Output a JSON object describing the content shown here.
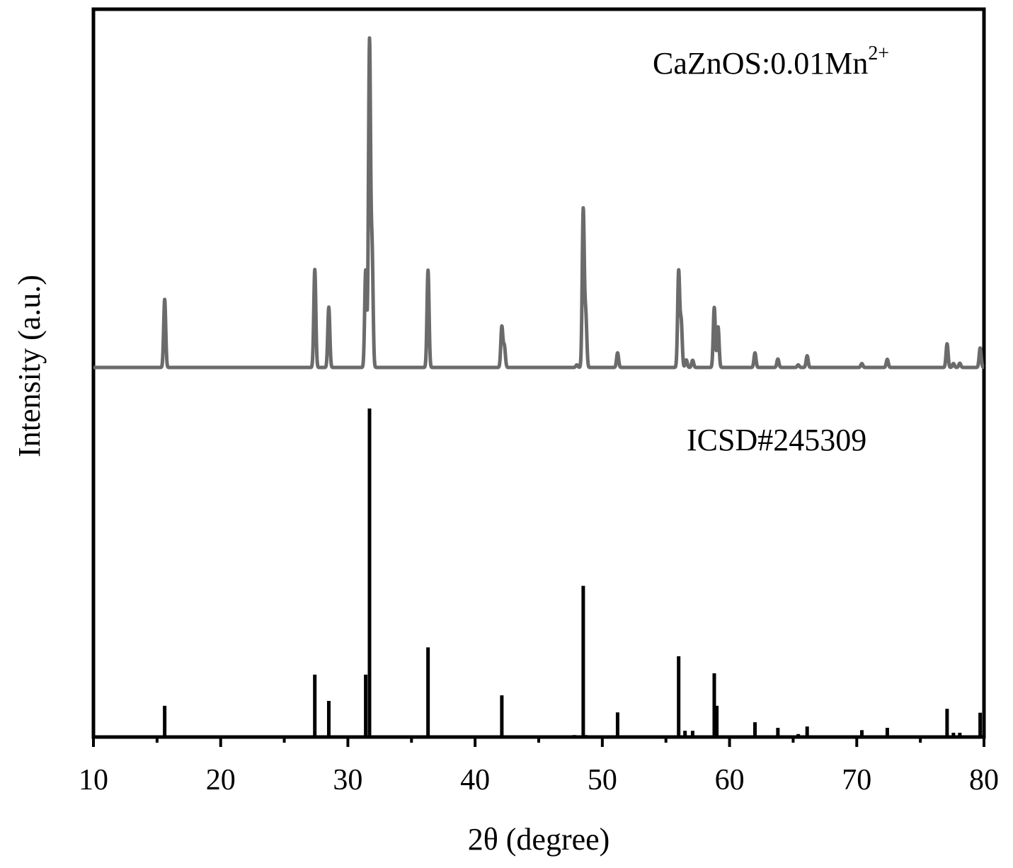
{
  "chart_data": {
    "type": "line",
    "xlabel": "2θ (degree)",
    "ylabel": "Intensity (a.u.)",
    "xlim": [
      10,
      80
    ],
    "xticks": [
      10,
      20,
      30,
      40,
      50,
      60,
      70,
      80
    ],
    "xticks_minor": [
      15,
      25,
      35,
      45,
      55,
      65,
      75
    ],
    "grid": false,
    "series": [
      {
        "name": "CaZnOS:0.01Mn",
        "name_superscript": "2+",
        "style": "line",
        "color": "#6b6b6b",
        "baseline": 0,
        "peaks": [
          [
            15.6,
            21
          ],
          [
            27.4,
            30.2
          ],
          [
            28.5,
            18.6
          ],
          [
            31.4,
            30
          ],
          [
            31.7,
            100
          ],
          [
            31.9,
            36
          ],
          [
            36.3,
            30
          ],
          [
            42.1,
            12.5
          ],
          [
            42.3,
            6.5
          ],
          [
            48.0,
            0.8
          ],
          [
            48.5,
            48.5
          ],
          [
            48.7,
            16
          ],
          [
            51.2,
            4.5
          ],
          [
            56.0,
            29.5
          ],
          [
            56.2,
            14
          ],
          [
            56.6,
            2.3
          ],
          [
            57.1,
            2.2
          ],
          [
            58.8,
            18.5
          ],
          [
            59.1,
            12.5
          ],
          [
            62.0,
            4.5
          ],
          [
            63.8,
            2.6
          ],
          [
            65.4,
            0.8
          ],
          [
            66.1,
            3.6
          ],
          [
            70.4,
            1.2
          ],
          [
            72.4,
            2.5
          ],
          [
            77.1,
            7.3
          ],
          [
            77.6,
            1.2
          ],
          [
            78.1,
            1.3
          ],
          [
            79.7,
            6
          ]
        ]
      },
      {
        "name": "ICSD#245309",
        "style": "stick",
        "color": "#000000",
        "baseline": 0,
        "peaks": [
          [
            15.6,
            9.5
          ],
          [
            27.4,
            19
          ],
          [
            28.5,
            11
          ],
          [
            31.4,
            19
          ],
          [
            31.7,
            100
          ],
          [
            36.3,
            27.3
          ],
          [
            42.1,
            12.7
          ],
          [
            47.8,
            0.6
          ],
          [
            48.5,
            46
          ],
          [
            48.7,
            0.6
          ],
          [
            51.2,
            7.5
          ],
          [
            56.0,
            24.6
          ],
          [
            56.5,
            1.9
          ],
          [
            57.1,
            1.9
          ],
          [
            58.8,
            19.4
          ],
          [
            59.0,
            9.5
          ],
          [
            62.0,
            4.5
          ],
          [
            63.8,
            2.8
          ],
          [
            65.4,
            0.9
          ],
          [
            66.1,
            3.2
          ],
          [
            70.4,
            2.1
          ],
          [
            72.4,
            2.8
          ],
          [
            77.1,
            8.6
          ],
          [
            77.6,
            1.3
          ],
          [
            78.1,
            1.3
          ],
          [
            79.7,
            7.4
          ]
        ]
      }
    ]
  }
}
